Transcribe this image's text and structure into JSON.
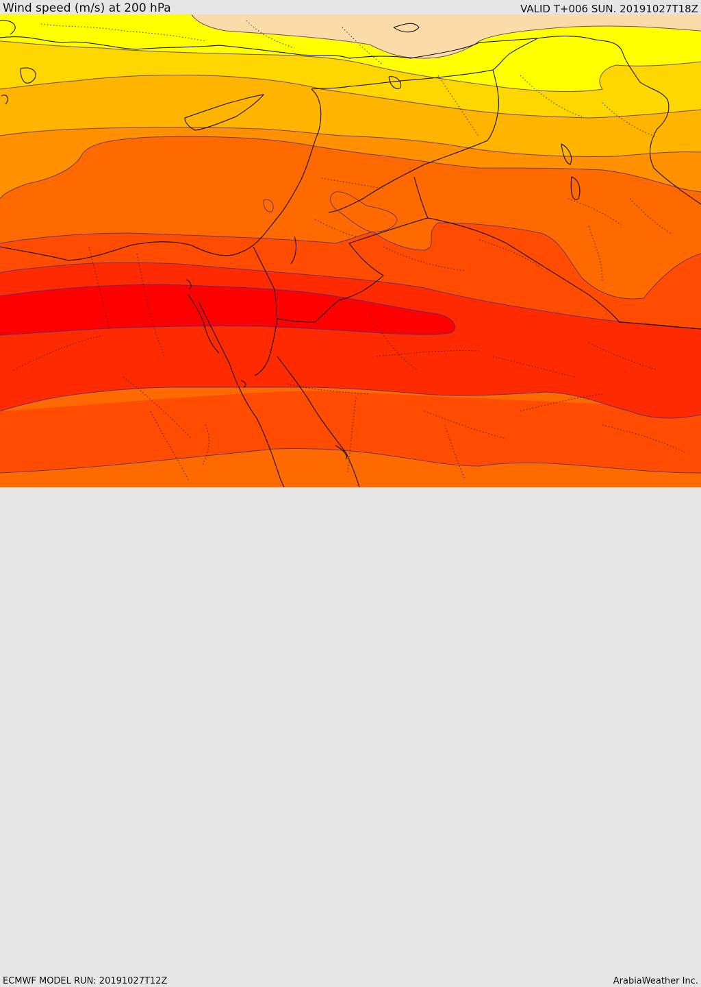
{
  "header": {
    "title": "Wind speed (m/s) at 200 hPa",
    "valid_time": "VALID T+006 SUN. 20191027T18Z"
  },
  "footer": {
    "model_run": "ECMWF MODEL RUN: 20191027T12Z",
    "credit": "ArabiaWeather Inc."
  },
  "map": {
    "variable": "wind speed",
    "level_hpa": 200,
    "units": "m/s",
    "palette": [
      "#fbdca8",
      "#ffff00",
      "#ffd700",
      "#ffb400",
      "#ff9000",
      "#ff6a00",
      "#ff4c00",
      "#ff2a00",
      "#ff0000"
    ],
    "contour_color": "#4a2a8c",
    "border_color": "#000000"
  }
}
